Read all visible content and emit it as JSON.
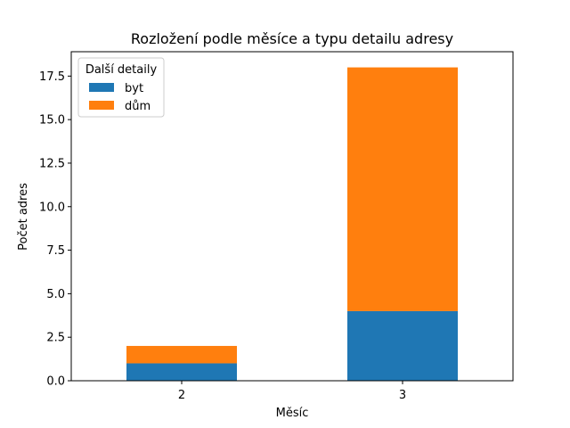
{
  "chart_data": {
    "type": "bar",
    "stacked": true,
    "title": "Rozložení podle měsíce a typu detailu adresy",
    "xlabel": "Měsíc",
    "ylabel": "Počet adres",
    "categories": [
      "2",
      "3"
    ],
    "series": [
      {
        "name": "byt",
        "values": [
          1,
          4
        ],
        "color": "#1f77b4"
      },
      {
        "name": "dům",
        "values": [
          1,
          14
        ],
        "color": "#ff7f0e"
      }
    ],
    "ylim": [
      0,
      18.9
    ],
    "yticks": [
      0.0,
      2.5,
      5.0,
      7.5,
      10.0,
      12.5,
      15.0,
      17.5
    ],
    "ytick_labels": [
      "0.0",
      "2.5",
      "5.0",
      "7.5",
      "10.0",
      "12.5",
      "15.0",
      "17.5"
    ],
    "grid": false,
    "legend": {
      "title": "Další detaily",
      "placement": "top-left"
    }
  }
}
